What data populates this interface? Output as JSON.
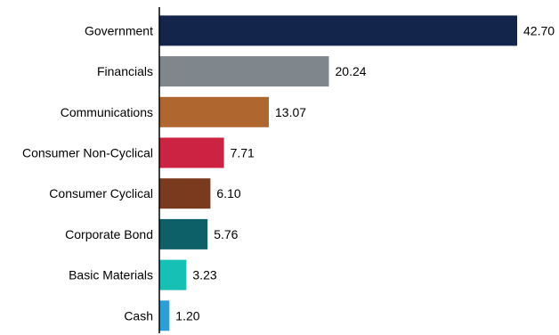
{
  "chart_data": {
    "type": "bar",
    "orientation": "horizontal",
    "title": "",
    "xlabel": "",
    "ylabel": "",
    "xlim": [
      0,
      45
    ],
    "grid": false,
    "legend": "none",
    "categories": [
      "Government",
      "Financials",
      "Communications",
      "Consumer Non-Cyclical",
      "Consumer Cyclical",
      "Corporate Bond",
      "Basic Materials",
      "Cash"
    ],
    "values": [
      42.7,
      20.24,
      13.07,
      7.71,
      6.1,
      5.76,
      3.23,
      1.2
    ],
    "value_labels": [
      "42.70",
      "20.24",
      "13.07",
      "7.71",
      "6.10",
      "5.76",
      "3.23",
      "1.20"
    ],
    "colors": [
      "#13254a",
      "#7f868c",
      "#b0672f",
      "#cc2343",
      "#7a3a1e",
      "#0e6068",
      "#16c0b4",
      "#2a9fd8"
    ]
  }
}
